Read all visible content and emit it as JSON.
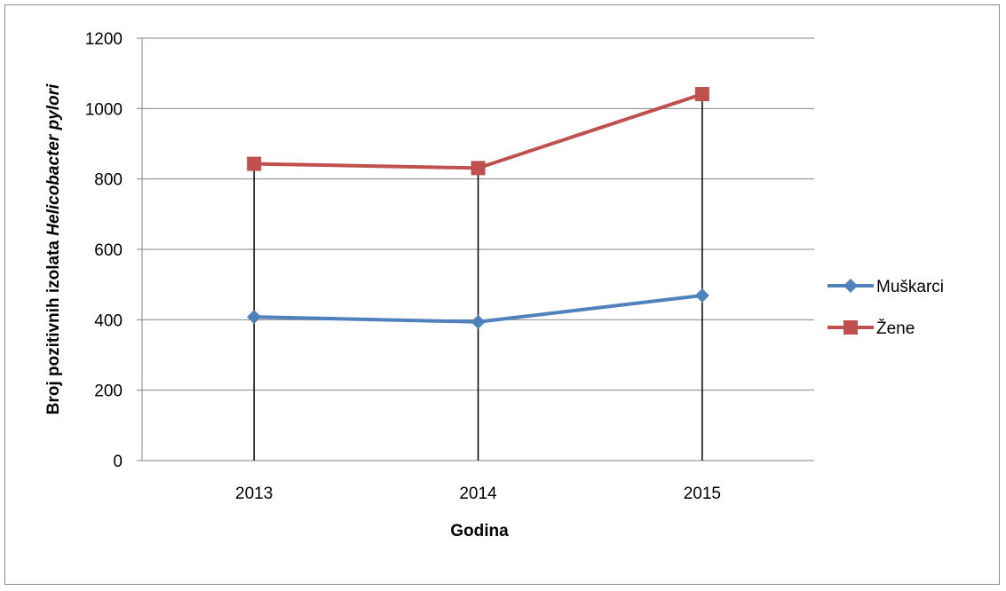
{
  "chart_data": {
    "type": "line",
    "categories": [
      "2013",
      "2014",
      "2015"
    ],
    "series": [
      {
        "name": "Muškarci",
        "values": [
          408,
          394,
          469
        ],
        "color": "#4F81BD",
        "marker": "diamond"
      },
      {
        "name": "Žene",
        "values": [
          843,
          831,
          1041
        ],
        "color": "#C0504D",
        "marker": "square"
      }
    ],
    "title": "",
    "xlabel": "Godina",
    "ylabel_prefix": "Broj pozitivnih izolata ",
    "ylabel_italic": "Helicobacter pylori",
    "ylim": [
      0,
      1200
    ],
    "yticks": [
      "0",
      "200",
      "400",
      "600",
      "800",
      "1000",
      "1200"
    ],
    "grid": true,
    "drop_lines": true,
    "legend_position": "right"
  }
}
